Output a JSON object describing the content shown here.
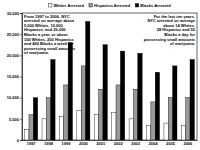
{
  "chart_data": {
    "type": "bar",
    "categories": [
      "1997",
      "1998",
      "1999",
      "2000",
      "2001",
      "2002",
      "2003",
      "2004",
      "2005",
      "2006"
    ],
    "series": [
      {
        "name": "Whites Arrested",
        "color": "#ffffff",
        "values": [
          2500,
          5000,
          5500,
          7000,
          6000,
          6500,
          5000,
          3500,
          4000,
          3500
        ]
      },
      {
        "name": "Hispanics Arrested",
        "color": "#999999",
        "values": [
          6000,
          10000,
          13000,
          17500,
          12000,
          13000,
          12000,
          9000,
          10000,
          10000
        ]
      },
      {
        "name": "Blacks Arrested",
        "color": "#000000",
        "values": [
          10000,
          19000,
          23000,
          28000,
          22500,
          21000,
          20500,
          16000,
          17500,
          19000
        ]
      }
    ],
    "ylim": [
      0,
      30000
    ],
    "yticks": [
      0,
      {
        "value": 5000,
        "label": "5,000"
      },
      {
        "value": 10000,
        "label": "10,000"
      },
      {
        "value": 15000,
        "label": "15,000"
      },
      {
        "value": 20000,
        "label": "20,000"
      },
      {
        "value": 25000,
        "label": "25,000"
      },
      {
        "value": 30000,
        "label": "30,000"
      }
    ],
    "grid": false,
    "legend": "top",
    "annotations": [
      [
        "From 1997 to 2006, NYC",
        "arrested on average about",
        "5,000 Whites, 10,000",
        "Hispanics, and 20,000",
        "Blacks a year, or about",
        "100 Whites, 200 Hispanics",
        "and 400 Blacks a week for",
        "possessing small amounts",
        "of marijuana."
      ],
      [
        "For the last ten years,",
        "NYC arrested on average",
        "about 14 Whites,",
        "28 Hispanics and 55",
        "Blacks a day for",
        "possessing small amounts",
        "of marijuana."
      ]
    ]
  }
}
